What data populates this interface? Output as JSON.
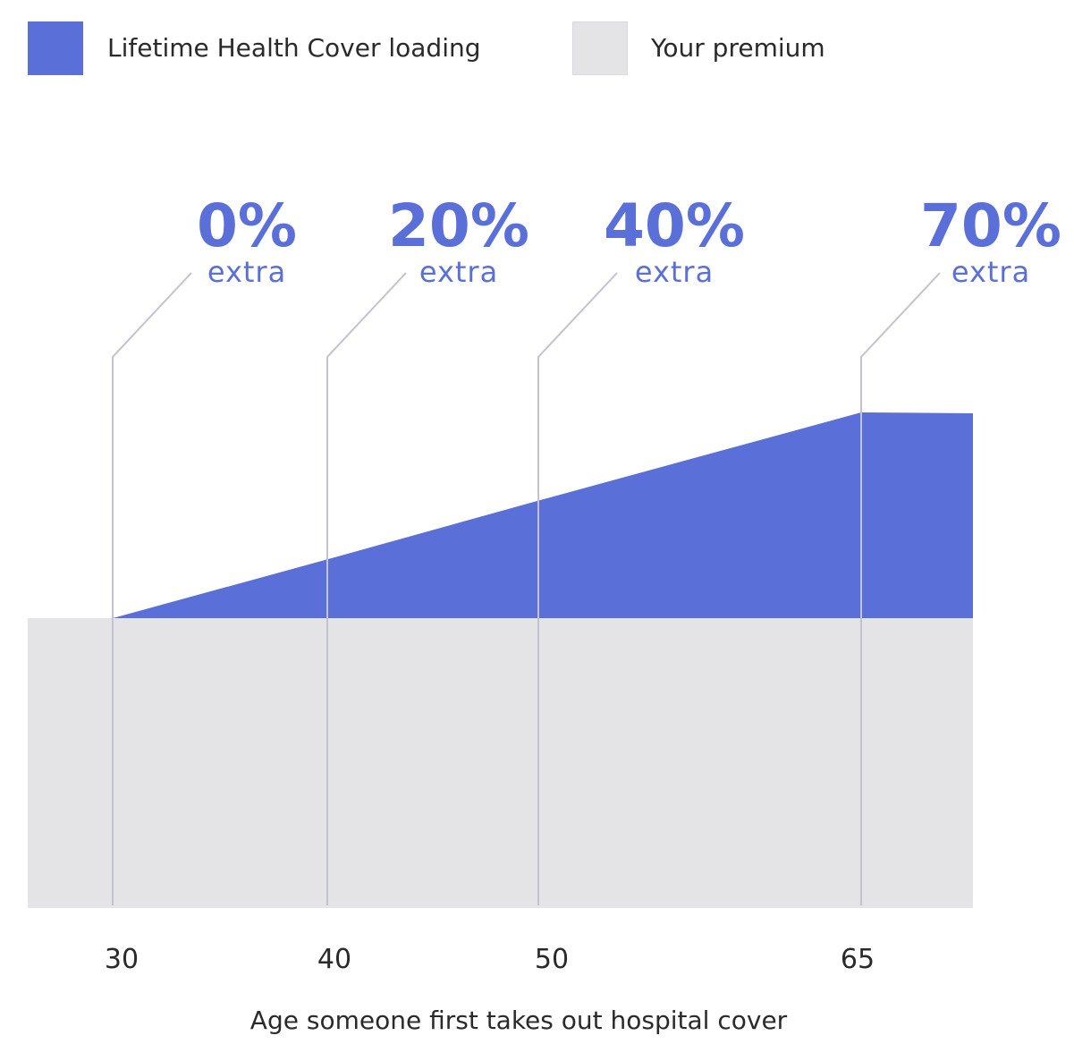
{
  "chart_data": {
    "type": "area",
    "xlabel": "Age someone first takes out hospital cover",
    "legend": [
      {
        "name": "Lifetime Health Cover loading",
        "color": "#5a6fd8"
      },
      {
        "name": "Your premium",
        "color": "#e4e4e6"
      }
    ],
    "x_ticks": [
      "30",
      "40",
      "50",
      "65"
    ],
    "x": [
      30,
      40,
      50,
      65
    ],
    "series": [
      {
        "name": "Lifetime Health Cover loading",
        "values": [
          0,
          20,
          40,
          70
        ]
      },
      {
        "name": "Your premium",
        "values": [
          100,
          100,
          100,
          100
        ]
      }
    ],
    "annotations": [
      {
        "x": 30,
        "value": "0%",
        "sub": "extra"
      },
      {
        "x": 40,
        "value": "20%",
        "sub": "extra"
      },
      {
        "x": 50,
        "value": "40%",
        "sub": "extra"
      },
      {
        "x": 65,
        "value": "70%",
        "sub": "extra"
      }
    ],
    "colors": {
      "loading": "#5a6fd8",
      "premium": "#e4e4e6",
      "leader": "#c2c2d0",
      "text": "#2a2a2a"
    },
    "grid": false,
    "legend_placement": "top-left"
  }
}
